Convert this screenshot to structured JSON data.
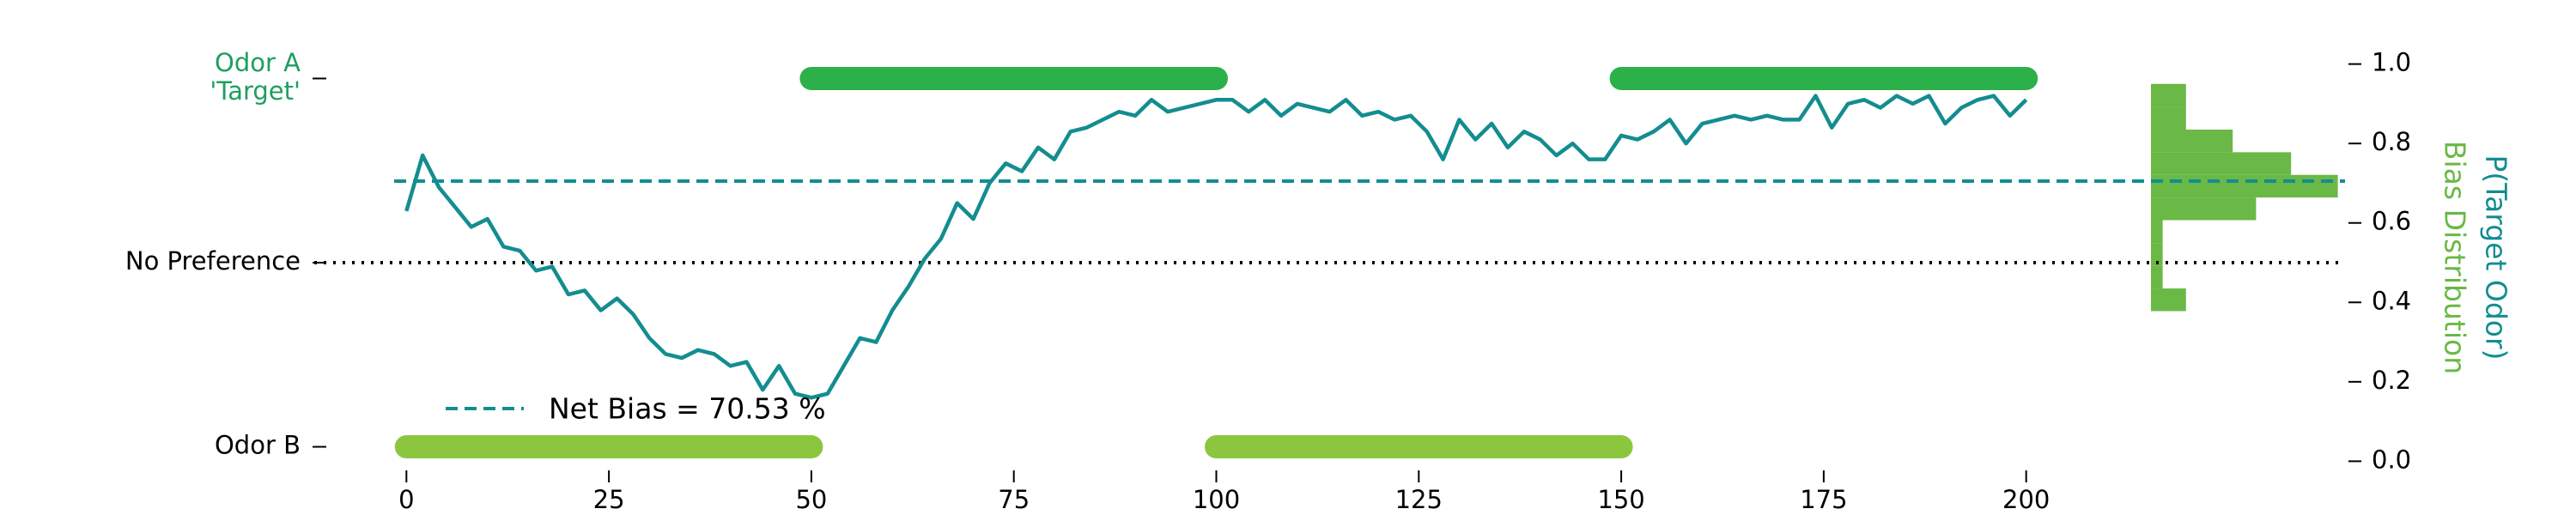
{
  "chart_data": {
    "type": "line",
    "x": [
      0,
      2,
      4,
      6,
      8,
      10,
      12,
      14,
      16,
      18,
      20,
      22,
      24,
      26,
      28,
      30,
      32,
      34,
      36,
      38,
      40,
      42,
      44,
      46,
      48,
      50,
      52,
      54,
      56,
      58,
      60,
      62,
      64,
      66,
      68,
      70,
      72,
      74,
      76,
      78,
      80,
      82,
      84,
      86,
      88,
      90,
      92,
      94,
      96,
      98,
      100,
      102,
      104,
      106,
      108,
      110,
      112,
      114,
      116,
      118,
      120,
      122,
      124,
      126,
      128,
      130,
      132,
      134,
      136,
      138,
      140,
      142,
      144,
      146,
      148,
      150,
      152,
      154,
      156,
      158,
      160,
      162,
      164,
      166,
      168,
      170,
      172,
      174,
      176,
      178,
      180,
      182,
      184,
      186,
      188,
      190,
      192,
      194,
      196,
      198,
      200
    ],
    "series": [
      {
        "axis": "y2",
        "color": "#138d90",
        "values": [
          0.63,
          0.77,
          0.69,
          0.64,
          0.59,
          0.61,
          0.54,
          0.53,
          0.48,
          0.49,
          0.42,
          0.43,
          0.38,
          0.41,
          0.37,
          0.31,
          0.27,
          0.26,
          0.28,
          0.27,
          0.24,
          0.25,
          0.18,
          0.24,
          0.17,
          0.16,
          0.17,
          0.24,
          0.31,
          0.3,
          0.38,
          0.44,
          0.51,
          0.56,
          0.65,
          0.61,
          0.7,
          0.75,
          0.73,
          0.79,
          0.76,
          0.83,
          0.84,
          0.86,
          0.88,
          0.87,
          0.91,
          0.88,
          0.89,
          0.9,
          0.91,
          0.91,
          0.88,
          0.91,
          0.87,
          0.9,
          0.89,
          0.88,
          0.91,
          0.87,
          0.88,
          0.86,
          0.87,
          0.83,
          0.76,
          0.86,
          0.81,
          0.85,
          0.79,
          0.83,
          0.81,
          0.77,
          0.8,
          0.76,
          0.76,
          0.82,
          0.81,
          0.83,
          0.86,
          0.8,
          0.85,
          0.86,
          0.87,
          0.86,
          0.87,
          0.86,
          0.86,
          0.92,
          0.84,
          0.9,
          0.91,
          0.89,
          0.92,
          0.9,
          0.92,
          0.85,
          0.89,
          0.91,
          0.92,
          0.87,
          0.91
        ]
      }
    ],
    "xlim": [
      -10,
      210
    ],
    "xticks": [
      0,
      25,
      50,
      75,
      100,
      125,
      150,
      175,
      200
    ],
    "ylim": [
      -0.05,
      1.05
    ],
    "yticks": [
      {
        "value": 0,
        "label": "Odor B"
      },
      {
        "value": 0.5,
        "label": "No Preference"
      },
      {
        "value": 1,
        "label": "Odor A\n'Target'"
      }
    ],
    "ytick_colors": [
      "#000000",
      "#000000",
      "#1f9e5e"
    ],
    "y2lim": [
      -0.01,
      1.01
    ],
    "y2ticks": [
      {
        "value": 0,
        "label": "0.0"
      },
      0.2,
      0.4,
      0.6,
      0.8,
      {
        "value": 1,
        "label": "1.0"
      }
    ],
    "y2label": "P(Target Odor)",
    "y2label_color": "#138d90",
    "blocks": [
      {
        "x": [
          50,
          100
        ],
        "y": 1,
        "color": "#2bb04a"
      },
      {
        "x": [
          150,
          200
        ],
        "y": 1,
        "color": "#2bb04a"
      },
      {
        "x": [
          0,
          50
        ],
        "y": 0,
        "color": "#8cc63f"
      },
      {
        "x": [
          100,
          150
        ],
        "y": 0,
        "color": "#8cc63f"
      }
    ],
    "reference_lines": [
      {
        "value": 0.7053,
        "axis": "y2",
        "style": "dashed",
        "color": "#138d90",
        "name": "Net Bias = 70.53 %"
      },
      {
        "value": 0.5,
        "axis": "y",
        "style": "dotted",
        "color": "#000000"
      }
    ],
    "histogram": {
      "label": "Bias Distribution",
      "color": "#6ab845",
      "bins": [
        0.378,
        0.435,
        0.492,
        0.549,
        0.607,
        0.664,
        0.721,
        0.778,
        0.835,
        0.892,
        0.95
      ],
      "counts": [
        3,
        1,
        1,
        1,
        9,
        16,
        12,
        7,
        3,
        3
      ]
    }
  }
}
